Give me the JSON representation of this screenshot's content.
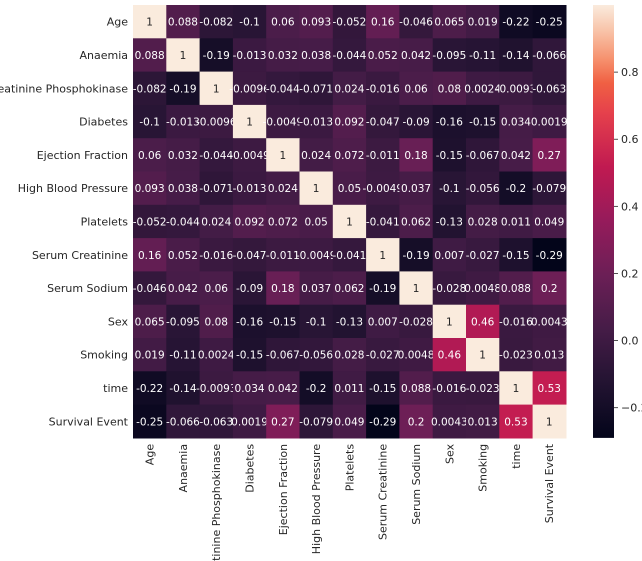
{
  "chart_data": {
    "type": "heatmap",
    "title": "",
    "labels": [
      "Age",
      "Anaemia",
      "Creatinine Phosphokinase",
      "Diabetes",
      "Ejection Fraction",
      "High Blood Pressure",
      "Platelets",
      "Serum Creatinine",
      "Serum Sodium",
      "Sex",
      "Smoking",
      "time",
      "Survival Event"
    ],
    "values": [
      [
        1,
        0.088,
        -0.082,
        -0.1,
        0.06,
        0.093,
        -0.052,
        0.16,
        -0.046,
        0.065,
        0.019,
        -0.22,
        -0.25
      ],
      [
        0.088,
        1,
        -0.19,
        -0.013,
        0.032,
        0.038,
        -0.044,
        0.052,
        0.042,
        -0.095,
        -0.11,
        -0.14,
        -0.066
      ],
      [
        -0.082,
        -0.19,
        1,
        -0.0096,
        -0.044,
        -0.071,
        0.024,
        -0.016,
        0.06,
        0.08,
        0.0024,
        -0.0093,
        -0.063
      ],
      [
        -0.1,
        -0.013,
        -0.0096,
        1,
        -0.0049,
        -0.013,
        0.092,
        -0.047,
        -0.09,
        -0.16,
        -0.15,
        0.034,
        0.0019
      ],
      [
        0.06,
        0.032,
        -0.044,
        -0.0049,
        1,
        0.024,
        0.072,
        -0.011,
        0.18,
        -0.15,
        -0.067,
        0.042,
        0.27
      ],
      [
        0.093,
        0.038,
        -0.071,
        -0.013,
        0.024,
        1,
        0.05,
        -0.0049,
        0.037,
        -0.1,
        -0.056,
        -0.2,
        -0.079
      ],
      [
        -0.052,
        -0.044,
        0.024,
        0.092,
        0.072,
        0.05,
        1,
        -0.041,
        0.062,
        -0.13,
        0.028,
        0.011,
        0.049
      ],
      [
        0.16,
        0.052,
        -0.016,
        -0.047,
        -0.011,
        -0.0049,
        -0.041,
        1,
        -0.19,
        0.007,
        -0.027,
        -0.15,
        -0.29
      ],
      [
        -0.046,
        0.042,
        0.06,
        -0.09,
        0.18,
        0.037,
        0.062,
        -0.19,
        1,
        -0.028,
        0.0048,
        0.088,
        0.2
      ],
      [
        0.065,
        -0.095,
        0.08,
        -0.16,
        -0.15,
        -0.1,
        -0.13,
        0.007,
        -0.028,
        1,
        0.46,
        -0.016,
        0.0043
      ],
      [
        0.019,
        -0.11,
        0.0024,
        -0.15,
        -0.067,
        -0.056,
        0.028,
        -0.027,
        0.0048,
        0.46,
        1,
        -0.023,
        0.013
      ],
      [
        -0.22,
        -0.14,
        -0.0093,
        0.034,
        0.042,
        -0.2,
        0.011,
        -0.15,
        0.088,
        -0.016,
        -0.023,
        1,
        0.53
      ],
      [
        -0.25,
        -0.066,
        -0.063,
        0.0019,
        0.27,
        -0.079,
        0.049,
        -0.29,
        0.2,
        0.0043,
        0.013,
        0.53,
        1
      ]
    ],
    "annotations": [
      [
        "1",
        "0.088",
        "-0.082",
        "-0.1",
        "0.06",
        "0.093",
        "-0.052",
        "0.16",
        "-0.046",
        "0.065",
        "0.019",
        "-0.22",
        "-0.25"
      ],
      [
        "0.088",
        "1",
        "-0.19",
        "-0.013",
        "0.032",
        "0.038",
        "-0.044",
        "0.052",
        "0.042",
        "-0.095",
        "-0.11",
        "-0.14",
        "-0.066"
      ],
      [
        "-0.082",
        "-0.19",
        "1",
        "-0.0096",
        "-0.044",
        "-0.071",
        "0.024",
        "-0.016",
        "0.06",
        "0.08",
        "0.0024",
        "-0.0093",
        "-0.063"
      ],
      [
        "-0.1",
        "-0.013",
        "-0.0096",
        "1",
        "-0.0049",
        "-0.013",
        "0.092",
        "-0.047",
        "-0.09",
        "-0.16",
        "-0.15",
        "0.034",
        "0.0019"
      ],
      [
        "0.06",
        "0.032",
        "-0.044",
        "-0.0049",
        "1",
        "0.024",
        "0.072",
        "-0.011",
        "0.18",
        "-0.15",
        "-0.067",
        "0.042",
        "0.27"
      ],
      [
        "0.093",
        "0.038",
        "-0.071",
        "-0.013",
        "0.024",
        "1",
        "0.05",
        "-0.0049",
        "0.037",
        "-0.1",
        "-0.056",
        "-0.2",
        "-0.079"
      ],
      [
        "-0.052",
        "-0.044",
        "0.024",
        "0.092",
        "0.072",
        "0.05",
        "1",
        "-0.041",
        "0.062",
        "-0.13",
        "0.028",
        "0.011",
        "0.049"
      ],
      [
        "0.16",
        "0.052",
        "-0.016",
        "-0.047",
        "-0.011",
        "-0.0049",
        "-0.041",
        "1",
        "-0.19",
        "0.007",
        "-0.027",
        "-0.15",
        "-0.29"
      ],
      [
        "-0.046",
        "0.042",
        "0.06",
        "-0.09",
        "0.18",
        "0.037",
        "0.062",
        "-0.19",
        "1",
        "-0.028",
        "0.0048",
        "0.088",
        "0.2"
      ],
      [
        "0.065",
        "-0.095",
        "0.08",
        "-0.16",
        "-0.15",
        "-0.1",
        "-0.13",
        "0.007",
        "-0.028",
        "1",
        "0.46",
        "-0.016",
        "0.0043"
      ],
      [
        "0.019",
        "-0.11",
        "0.0024",
        "-0.15",
        "-0.067",
        "-0.056",
        "0.028",
        "-0.027",
        "0.0048",
        "0.46",
        "1",
        "-0.023",
        "0.013"
      ],
      [
        "-0.22",
        "-0.14",
        "-0.0093",
        "0.034",
        "0.042",
        "-0.2",
        "0.011",
        "-0.15",
        "0.088",
        "-0.016",
        "-0.023",
        "1",
        "0.53"
      ],
      [
        "-0.25",
        "-0.066",
        "-0.063",
        "0.0019",
        "0.27",
        "-0.079",
        "0.049",
        "-0.29",
        "0.2",
        "0.0043",
        "0.013",
        "0.53",
        "1"
      ]
    ],
    "colormap": "rocket",
    "colorbar": {
      "range": [
        -0.29,
        1
      ],
      "ticks": [
        -0.2,
        0.0,
        0.2,
        0.4,
        0.6,
        0.8
      ],
      "tick_labels": [
        "−0.2",
        "0.0",
        "0.2",
        "0.4",
        "0.6",
        "0.8"
      ]
    },
    "grid": false
  }
}
